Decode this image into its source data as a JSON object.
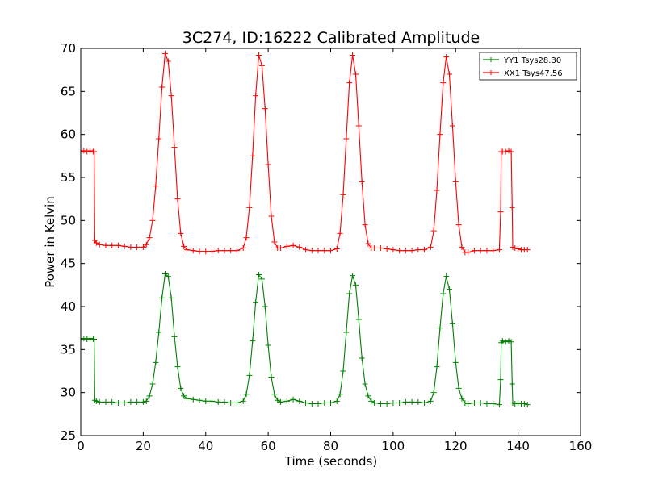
{
  "chart_data": {
    "type": "line",
    "title": "3C274, ID:16222 Calibrated Amplitude",
    "xlabel": "Time (seconds)",
    "ylabel": "Power in Kelvin",
    "xlim": [
      0,
      160
    ],
    "ylim": [
      25,
      70
    ],
    "xticks": [
      0,
      20,
      40,
      60,
      80,
      100,
      120,
      140,
      160
    ],
    "yticks": [
      25,
      30,
      35,
      40,
      45,
      50,
      55,
      60,
      65,
      70
    ],
    "grid": false,
    "legend_position": "top-right",
    "marker": "+",
    "series": [
      {
        "name": "YY1 Tsys28.30",
        "color": "#008000",
        "points": [
          [
            0.0,
            36.2
          ],
          [
            1.0,
            36.3
          ],
          [
            2.0,
            36.2
          ],
          [
            3.0,
            36.3
          ],
          [
            4.0,
            36.2
          ],
          [
            4.3,
            36.2
          ],
          [
            4.5,
            29.1
          ],
          [
            5,
            29.0
          ],
          [
            6,
            28.9
          ],
          [
            8,
            28.9
          ],
          [
            10,
            28.9
          ],
          [
            12,
            28.8
          ],
          [
            14,
            28.8
          ],
          [
            16,
            28.9
          ],
          [
            18,
            28.9
          ],
          [
            20,
            28.9
          ],
          [
            21,
            29.0
          ],
          [
            22,
            29.6
          ],
          [
            23,
            31.0
          ],
          [
            24,
            33.5
          ],
          [
            25,
            37.0
          ],
          [
            26,
            41.0
          ],
          [
            27,
            43.8
          ],
          [
            28,
            43.5
          ],
          [
            29,
            41.0
          ],
          [
            30,
            36.5
          ],
          [
            31,
            33.0
          ],
          [
            32,
            30.5
          ],
          [
            33,
            29.6
          ],
          [
            34,
            29.3
          ],
          [
            36,
            29.2
          ],
          [
            38,
            29.1
          ],
          [
            40,
            29.0
          ],
          [
            42,
            29.0
          ],
          [
            44,
            28.9
          ],
          [
            46,
            28.9
          ],
          [
            48,
            28.8
          ],
          [
            50,
            28.8
          ],
          [
            52,
            29.0
          ],
          [
            53,
            29.8
          ],
          [
            54,
            32.0
          ],
          [
            55,
            36.0
          ],
          [
            56,
            40.5
          ],
          [
            57,
            43.7
          ],
          [
            58,
            43.2
          ],
          [
            59,
            40.0
          ],
          [
            60,
            35.5
          ],
          [
            61,
            31.8
          ],
          [
            62,
            29.8
          ],
          [
            63,
            29.1
          ],
          [
            64,
            28.9
          ],
          [
            66,
            29.0
          ],
          [
            68,
            29.2
          ],
          [
            70,
            29.0
          ],
          [
            72,
            28.8
          ],
          [
            74,
            28.7
          ],
          [
            76,
            28.7
          ],
          [
            78,
            28.8
          ],
          [
            80,
            28.8
          ],
          [
            82,
            29.0
          ],
          [
            83,
            29.8
          ],
          [
            84,
            32.5
          ],
          [
            85,
            37.0
          ],
          [
            86,
            41.5
          ],
          [
            87,
            43.6
          ],
          [
            88,
            42.5
          ],
          [
            89,
            38.5
          ],
          [
            90,
            34.0
          ],
          [
            91,
            31.0
          ],
          [
            92,
            29.6
          ],
          [
            93,
            29.0
          ],
          [
            94,
            28.8
          ],
          [
            96,
            28.7
          ],
          [
            98,
            28.7
          ],
          [
            100,
            28.8
          ],
          [
            102,
            28.8
          ],
          [
            104,
            28.9
          ],
          [
            106,
            28.9
          ],
          [
            108,
            28.9
          ],
          [
            110,
            28.8
          ],
          [
            112,
            29.0
          ],
          [
            113,
            30.0
          ],
          [
            114,
            33.0
          ],
          [
            115,
            37.5
          ],
          [
            116,
            41.5
          ],
          [
            117,
            43.5
          ],
          [
            118,
            42.0
          ],
          [
            119,
            38.0
          ],
          [
            120,
            33.5
          ],
          [
            121,
            30.5
          ],
          [
            122,
            29.3
          ],
          [
            123,
            28.8
          ],
          [
            124,
            28.7
          ],
          [
            126,
            28.8
          ],
          [
            128,
            28.8
          ],
          [
            130,
            28.7
          ],
          [
            132,
            28.7
          ],
          [
            134,
            28.6
          ],
          [
            134.4,
            31.5
          ],
          [
            134.6,
            35.8
          ],
          [
            135,
            36.0
          ],
          [
            136,
            35.9
          ],
          [
            137,
            36.0
          ],
          [
            137.8,
            35.9
          ],
          [
            138.1,
            31.0
          ],
          [
            138.3,
            28.8
          ],
          [
            139,
            28.7
          ],
          [
            140,
            28.8
          ],
          [
            141,
            28.7
          ],
          [
            142,
            28.7
          ],
          [
            143,
            28.6
          ]
        ]
      },
      {
        "name": "XX1 Tsys47.56",
        "color": "#ff0000",
        "points": [
          [
            0.0,
            58.0
          ],
          [
            1.0,
            58.1
          ],
          [
            2.0,
            58.0
          ],
          [
            3.0,
            58.1
          ],
          [
            4.0,
            58.0
          ],
          [
            4.3,
            58.0
          ],
          [
            4.5,
            47.7
          ],
          [
            5,
            47.4
          ],
          [
            6,
            47.2
          ],
          [
            8,
            47.1
          ],
          [
            10,
            47.1
          ],
          [
            12,
            47.1
          ],
          [
            14,
            47.0
          ],
          [
            16,
            46.9
          ],
          [
            18,
            46.9
          ],
          [
            20,
            46.9
          ],
          [
            21,
            47.2
          ],
          [
            22,
            48.0
          ],
          [
            23,
            50.0
          ],
          [
            24,
            54.0
          ],
          [
            25,
            59.5
          ],
          [
            26,
            65.5
          ],
          [
            27,
            69.4
          ],
          [
            28,
            68.5
          ],
          [
            29,
            64.5
          ],
          [
            30,
            58.5
          ],
          [
            31,
            52.5
          ],
          [
            32,
            48.5
          ],
          [
            33,
            47.0
          ],
          [
            34,
            46.6
          ],
          [
            36,
            46.5
          ],
          [
            38,
            46.4
          ],
          [
            40,
            46.4
          ],
          [
            42,
            46.4
          ],
          [
            44,
            46.5
          ],
          [
            46,
            46.5
          ],
          [
            48,
            46.5
          ],
          [
            50,
            46.5
          ],
          [
            52,
            46.8
          ],
          [
            53,
            48.0
          ],
          [
            54,
            51.5
          ],
          [
            55,
            57.5
          ],
          [
            56,
            64.5
          ],
          [
            57,
            69.2
          ],
          [
            58,
            68.0
          ],
          [
            59,
            63.0
          ],
          [
            60,
            56.5
          ],
          [
            61,
            50.5
          ],
          [
            62,
            47.5
          ],
          [
            63,
            46.8
          ],
          [
            64,
            46.8
          ],
          [
            66,
            47.0
          ],
          [
            68,
            47.1
          ],
          [
            70,
            46.9
          ],
          [
            72,
            46.6
          ],
          [
            74,
            46.5
          ],
          [
            76,
            46.5
          ],
          [
            78,
            46.5
          ],
          [
            80,
            46.5
          ],
          [
            82,
            46.7
          ],
          [
            83,
            48.5
          ],
          [
            84,
            53.0
          ],
          [
            85,
            59.5
          ],
          [
            86,
            66.0
          ],
          [
            87,
            69.2
          ],
          [
            88,
            67.0
          ],
          [
            89,
            61.0
          ],
          [
            90,
            54.5
          ],
          [
            91,
            49.5
          ],
          [
            92,
            47.3
          ],
          [
            93,
            46.8
          ],
          [
            94,
            46.8
          ],
          [
            96,
            46.8
          ],
          [
            98,
            46.7
          ],
          [
            100,
            46.6
          ],
          [
            102,
            46.5
          ],
          [
            104,
            46.5
          ],
          [
            106,
            46.5
          ],
          [
            108,
            46.6
          ],
          [
            110,
            46.6
          ],
          [
            112,
            46.9
          ],
          [
            113,
            48.8
          ],
          [
            114,
            53.5
          ],
          [
            115,
            60.0
          ],
          [
            116,
            66.0
          ],
          [
            117,
            69.0
          ],
          [
            118,
            67.0
          ],
          [
            119,
            61.0
          ],
          [
            120,
            54.5
          ],
          [
            121,
            49.5
          ],
          [
            122,
            46.9
          ],
          [
            123,
            46.3
          ],
          [
            124,
            46.3
          ],
          [
            126,
            46.5
          ],
          [
            128,
            46.5
          ],
          [
            130,
            46.5
          ],
          [
            132,
            46.5
          ],
          [
            134,
            46.6
          ],
          [
            134.4,
            51.0
          ],
          [
            134.6,
            58.0
          ],
          [
            135,
            58.0
          ],
          [
            136,
            58.0
          ],
          [
            137,
            58.1
          ],
          [
            137.8,
            58.0
          ],
          [
            138.1,
            51.5
          ],
          [
            138.3,
            46.9
          ],
          [
            139,
            46.8
          ],
          [
            140,
            46.7
          ],
          [
            141,
            46.6
          ],
          [
            142,
            46.6
          ],
          [
            143,
            46.6
          ]
        ]
      }
    ]
  }
}
